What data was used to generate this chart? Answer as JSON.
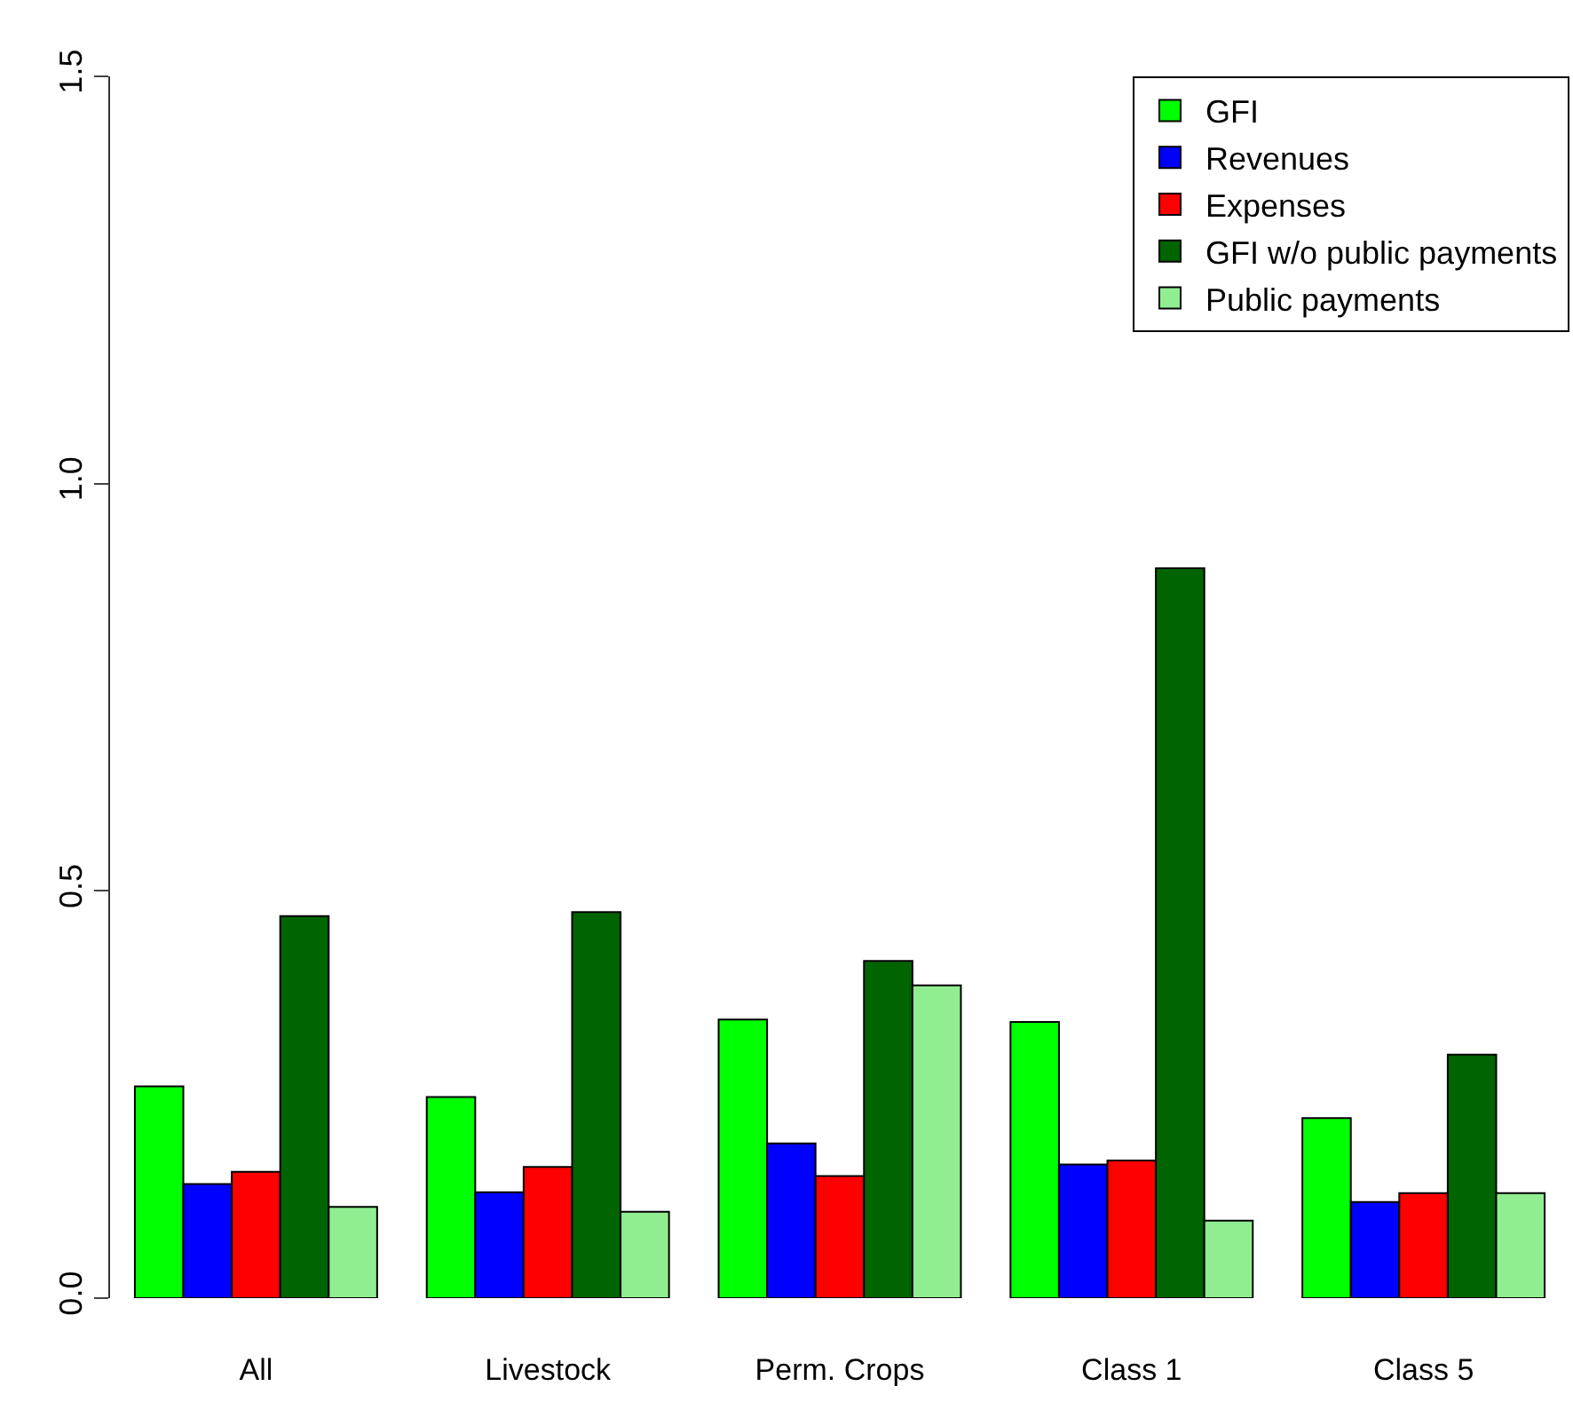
{
  "chart_data": {
    "type": "bar",
    "categories": [
      "All",
      "Livestock",
      "Perm. Crops",
      "Class 1",
      "Class 5"
    ],
    "series": [
      {
        "name": "GFI",
        "color": "#00ff00",
        "values": [
          0.26,
          0.247,
          0.342,
          0.339,
          0.221
        ]
      },
      {
        "name": "Revenues",
        "color": "#0000ff",
        "values": [
          0.14,
          0.13,
          0.19,
          0.164,
          0.118
        ]
      },
      {
        "name": "Expenses",
        "color": "#ff0000",
        "values": [
          0.155,
          0.161,
          0.15,
          0.169,
          0.129
        ]
      },
      {
        "name": "GFI w/o public payments",
        "color": "#006400",
        "values": [
          0.469,
          0.474,
          0.414,
          0.896,
          0.299
        ]
      },
      {
        "name": "Public payments",
        "color": "#90ee90",
        "values": [
          0.112,
          0.106,
          0.384,
          0.095,
          0.129
        ]
      }
    ],
    "ylim": [
      0,
      1.5
    ],
    "yticks": [
      {
        "value": 0,
        "label": "0.0"
      },
      0.5,
      {
        "value": 1,
        "label": "1.0"
      },
      1.5
    ],
    "legend": "top right"
  }
}
